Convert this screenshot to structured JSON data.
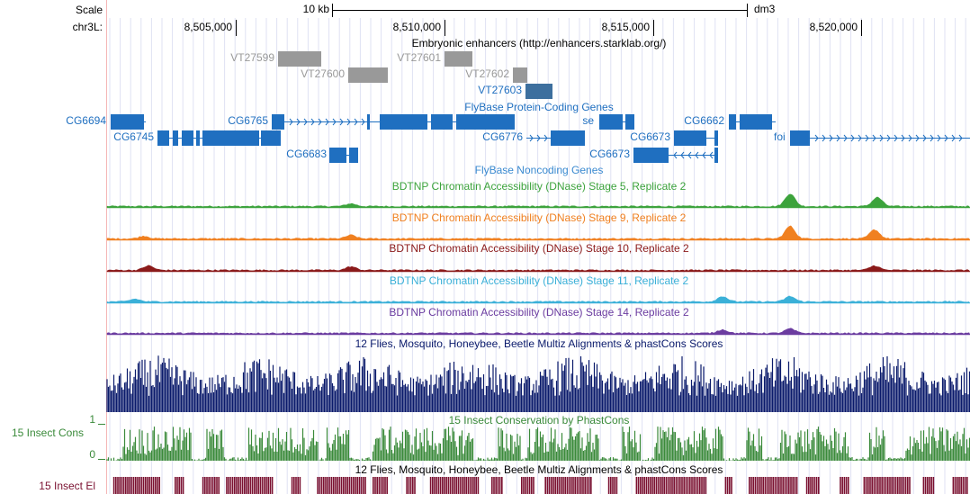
{
  "ruler": {
    "scale_label": "Scale",
    "chrom_label": "chr3L:",
    "scale_bar": "10 kb",
    "assembly": "dm3",
    "positions": [
      "8,505,000",
      "8,510,000",
      "8,515,000",
      "8,520,000"
    ]
  },
  "enhancers": {
    "title": "Embryonic enhancers (http://enhancers.starklab.org/)",
    "items": [
      "VT27599",
      "VT27600",
      "VT27601",
      "VT27602",
      "VT27603"
    ]
  },
  "protein_genes": {
    "title": "FlyBase Protein-Coding Genes",
    "genes": [
      "CG6694",
      "CG6745",
      "CG6765",
      "CG6683",
      "CG6776",
      "se",
      "CG6673",
      "CG6673",
      "CG6662",
      "foi"
    ]
  },
  "noncoding_genes": {
    "title": "FlyBase Noncoding Genes"
  },
  "dnase_tracks": [
    "BDTNP Chromatin Accessibility (DNase) Stage 5, Replicate 2",
    "BDTNP Chromatin Accessibility (DNase) Stage 9, Replicate 2",
    "BDTNP Chromatin Accessibility (DNase) Stage 10, Replicate 2",
    "BDTNP Chromatin Accessibility (DNase) Stage 11, Replicate 2",
    "BDTNP Chromatin Accessibility (DNase) Stage 14, Replicate 2"
  ],
  "multiz": {
    "title": "12 Flies, Mosquito, Honeybee, Beetle Multiz Alignments & phastCons Scores"
  },
  "phastcons": {
    "title": "15 Insect Conservation by PhastCons",
    "label": "15 Insect Cons",
    "max": "1",
    "min": "0"
  },
  "elements": {
    "title": "12 Flies, Mosquito, Honeybee, Beetle Multiz Alignments & phastCons Scores",
    "label": "15 Insect El"
  }
}
